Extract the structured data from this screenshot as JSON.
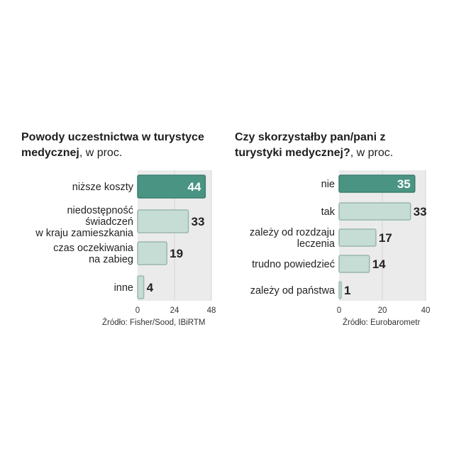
{
  "colors": {
    "highlight_bar": "#4a9484",
    "bar_fill": "#c6ddd5",
    "bar_stroke": "#9ab7ad",
    "plot_bg": "#ebebeb",
    "grid": "#d5d5d5"
  },
  "chart_data": [
    {
      "type": "bar",
      "orientation": "horizontal",
      "title": "Powody uczestnictwa w turystyce medycznej",
      "title_suffix": ", w proc.",
      "categories": [
        [
          "niższe koszty"
        ],
        [
          "niedostępność",
          "świadczeń",
          "w kraju zamieszkania"
        ],
        [
          "czas oczekiwania",
          "na zabieg"
        ],
        [
          "inne"
        ]
      ],
      "values": [
        44,
        33,
        19,
        4
      ],
      "value_labels": [
        "44",
        "33",
        "19",
        "4"
      ],
      "highlight_index": 0,
      "xlim": [
        0,
        48
      ],
      "ticks": [
        "0",
        "24",
        "48"
      ],
      "tick_values": [
        0,
        24,
        48
      ],
      "source": "Źródło: Fisher/Sood, IBiRTM"
    },
    {
      "type": "bar",
      "orientation": "horizontal",
      "title": "Czy skorzystałby pan/pani z turystyki medycznej?",
      "title_suffix": ", w proc.",
      "categories": [
        [
          "nie"
        ],
        [
          "tak"
        ],
        [
          "zależy od rozdzaju",
          "leczenia"
        ],
        [
          "trudno powiedzieć"
        ],
        [
          "zależy od państwa"
        ]
      ],
      "values": [
        35,
        33,
        17,
        14,
        1
      ],
      "value_labels": [
        "35",
        "33",
        "17",
        "14",
        "1"
      ],
      "highlight_index": 0,
      "xlim": [
        0,
        40
      ],
      "ticks": [
        "0",
        "20",
        "40"
      ],
      "tick_values": [
        0,
        20,
        40
      ],
      "source": "Źródło: Eurobarometr"
    }
  ]
}
